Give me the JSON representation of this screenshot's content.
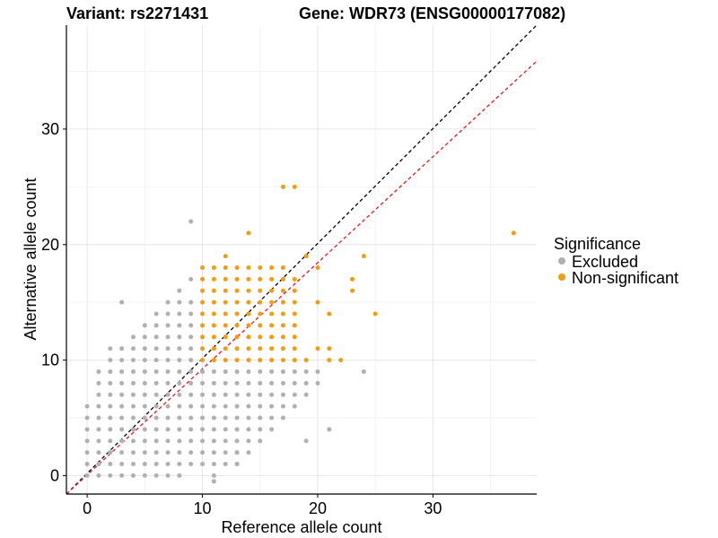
{
  "chart_data": {
    "type": "scatter",
    "title_variant": "Variant: rs2271431",
    "title_gene": "Gene: WDR73 (ENSG00000177082)",
    "xlabel": "Reference allele count",
    "ylabel": "Alternative allele count",
    "xlim": [
      -1.8,
      39.0
    ],
    "ylim": [
      -1.6,
      39.0
    ],
    "x_ticks": [
      0,
      10,
      20,
      30
    ],
    "y_ticks": [
      0,
      10,
      20,
      30
    ],
    "grid": true,
    "reference_lines": [
      {
        "name": "identity",
        "slope": 1.0,
        "intercept": 0,
        "color": "#000000",
        "style": "dashed"
      },
      {
        "name": "fitted",
        "slope": 0.92,
        "intercept": 0,
        "color": "#e41a1c",
        "style": "dashed"
      }
    ],
    "legend": {
      "title": "Significance",
      "position": "right",
      "entries": [
        {
          "label": "Excluded",
          "color": "#b0b0b0"
        },
        {
          "label": "Non-significant",
          "color": "#f39c12"
        }
      ]
    },
    "series": [
      {
        "name": "Excluded",
        "color": "#b0b0b0",
        "cells": [
          {
            "x": 0,
            "y": [
              0,
              1,
              2,
              3,
              4,
              5,
              6
            ]
          },
          {
            "x": 1,
            "y": [
              0,
              1,
              2,
              3,
              4,
              5,
              6,
              7,
              8,
              9
            ]
          },
          {
            "x": 2,
            "y": [
              0,
              1,
              2,
              3,
              4,
              5,
              6,
              7,
              8,
              9,
              10,
              11
            ]
          },
          {
            "x": 3,
            "y": [
              0,
              1,
              2,
              3,
              4,
              5,
              6,
              7,
              8,
              9,
              10,
              11,
              15
            ]
          },
          {
            "x": 4,
            "y": [
              0,
              1,
              2,
              3,
              4,
              5,
              6,
              7,
              8,
              9,
              10,
              11,
              12
            ]
          },
          {
            "x": 5,
            "y": [
              0,
              1,
              2,
              3,
              4,
              5,
              6,
              7,
              8,
              9,
              10,
              11,
              12,
              13
            ]
          },
          {
            "x": 6,
            "y": [
              0,
              1,
              2,
              3,
              4,
              5,
              6,
              7,
              8,
              9,
              10,
              11,
              12,
              13,
              14
            ]
          },
          {
            "x": 7,
            "y": [
              0,
              1,
              2,
              3,
              4,
              5,
              6,
              7,
              8,
              9,
              10,
              11,
              12,
              13,
              14,
              15
            ]
          },
          {
            "x": 8,
            "y": [
              0,
              1,
              2,
              3,
              4,
              5,
              6,
              7,
              8,
              9,
              10,
              11,
              12,
              13,
              14,
              15,
              16
            ]
          },
          {
            "x": 9,
            "y": [
              1,
              2,
              3,
              4,
              5,
              6,
              7,
              8,
              9,
              10,
              11,
              12,
              13,
              14,
              15,
              17,
              22
            ]
          },
          {
            "x": 10,
            "y": [
              1,
              2,
              3,
              4,
              5,
              6,
              7,
              8,
              9
            ]
          },
          {
            "x": 11,
            "y": [
              0,
              1,
              2,
              3,
              4,
              5,
              6,
              7,
              8,
              9
            ]
          },
          {
            "x": 12,
            "y": [
              1,
              2,
              3,
              4,
              5,
              6,
              7,
              8,
              9
            ]
          },
          {
            "x": 13,
            "y": [
              1,
              2,
              3,
              4,
              5,
              6,
              7,
              8,
              9
            ]
          },
          {
            "x": 14,
            "y": [
              2,
              3,
              4,
              5,
              6,
              7,
              8,
              9
            ]
          },
          {
            "x": 15,
            "y": [
              3,
              4,
              5,
              6,
              7,
              8,
              9
            ]
          },
          {
            "x": 16,
            "y": [
              4,
              5,
              6,
              7,
              8,
              9
            ]
          },
          {
            "x": 17,
            "y": [
              5,
              6,
              7,
              8,
              9
            ]
          },
          {
            "x": 18,
            "y": [
              6,
              7,
              8,
              9
            ]
          },
          {
            "x": 19,
            "y": [
              7,
              8,
              9
            ]
          },
          {
            "x": 20,
            "y": [
              8,
              9
            ]
          }
        ],
        "points": [
          [
            11,
            -0.5
          ],
          [
            13,
            1
          ],
          [
            13,
            2
          ],
          [
            19,
            3
          ],
          [
            21,
            4
          ],
          [
            24,
            9
          ]
        ]
      },
      {
        "name": "Non-significant",
        "color": "#f39c12",
        "cells": [
          {
            "x": 10,
            "y": [
              10,
              11,
              12,
              13,
              14,
              15,
              16,
              17,
              18
            ]
          },
          {
            "x": 11,
            "y": [
              10,
              11,
              12,
              13,
              14,
              15,
              16,
              17,
              18
            ]
          },
          {
            "x": 12,
            "y": [
              10,
              11,
              12,
              13,
              14,
              15,
              16,
              17,
              18,
              19
            ]
          },
          {
            "x": 13,
            "y": [
              10,
              11,
              12,
              13,
              14,
              15,
              16,
              17,
              18
            ]
          },
          {
            "x": 14,
            "y": [
              10,
              11,
              12,
              13,
              14,
              15,
              16,
              17,
              18,
              21
            ]
          },
          {
            "x": 15,
            "y": [
              10,
              11,
              12,
              13,
              14,
              15,
              16,
              17,
              18
            ]
          },
          {
            "x": 16,
            "y": [
              10,
              11,
              12,
              13,
              14,
              15,
              16,
              17,
              18
            ]
          },
          {
            "x": 17,
            "y": [
              10,
              11,
              12,
              13,
              14,
              15,
              16,
              17,
              18,
              25
            ]
          },
          {
            "x": 18,
            "y": [
              10,
              11,
              12,
              13,
              14,
              15,
              16,
              17,
              25
            ]
          }
        ],
        "points": [
          [
            19,
            19
          ],
          [
            19,
            10
          ],
          [
            20,
            18
          ],
          [
            20,
            11
          ],
          [
            20,
            15
          ],
          [
            21,
            11
          ],
          [
            21,
            14
          ],
          [
            21,
            10
          ],
          [
            22,
            10
          ],
          [
            23,
            16
          ],
          [
            23,
            17
          ],
          [
            24,
            19
          ],
          [
            25,
            14
          ],
          [
            37,
            21
          ]
        ]
      }
    ]
  }
}
